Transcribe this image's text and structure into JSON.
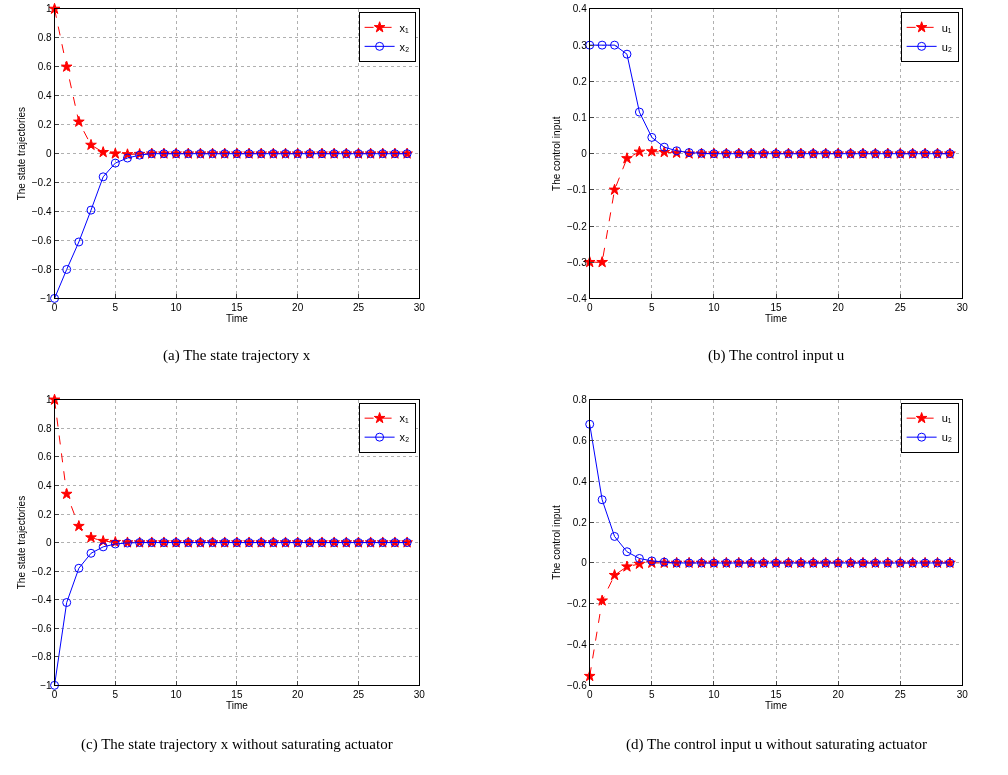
{
  "chart_data": [
    {
      "type": "line",
      "title": "(a) The state trajectory x",
      "xlabel": "Time",
      "ylabel": "The state trajectories",
      "x": [
        0,
        1,
        2,
        3,
        4,
        5,
        6,
        7,
        8,
        9,
        10,
        11,
        12,
        13,
        14,
        15,
        16,
        17,
        18,
        19,
        20,
        21,
        22,
        23,
        24,
        25,
        26,
        27,
        28,
        29
      ],
      "xlim": [
        0,
        30
      ],
      "xticks": [
        0,
        5,
        10,
        15,
        20,
        25,
        30
      ],
      "ylim": [
        -1,
        1
      ],
      "yticks": [
        -1,
        -0.8,
        -0.6,
        -0.4,
        -0.2,
        0,
        0.2,
        0.4,
        0.6,
        0.8,
        1
      ],
      "grid": true,
      "legend": "top right",
      "series": [
        {
          "name": "x₁",
          "color": "#ff0000",
          "marker": "star",
          "line_style": "dashed",
          "values": [
            1,
            0.6,
            0.22,
            0.06,
            0.01,
            0,
            -0.005,
            -0.003,
            0,
            0,
            0,
            0,
            0,
            0,
            0,
            0,
            0,
            0,
            0,
            0,
            0,
            0,
            0,
            0,
            0,
            0,
            0,
            0,
            0,
            0
          ]
        },
        {
          "name": "x₂",
          "color": "#0000ff",
          "marker": "circle",
          "line_style": "solid",
          "values": [
            -1,
            -0.8,
            -0.61,
            -0.39,
            -0.16,
            -0.065,
            -0.03,
            -0.01,
            0,
            0,
            0,
            0,
            0,
            0,
            0,
            0,
            0,
            0,
            0,
            0,
            0,
            0,
            0,
            0,
            0,
            0,
            0,
            0,
            0,
            0
          ]
        }
      ]
    },
    {
      "type": "line",
      "title": "(b) The control input u",
      "xlabel": "Time",
      "ylabel": "The control input",
      "x": [
        0,
        1,
        2,
        3,
        4,
        5,
        6,
        7,
        8,
        9,
        10,
        11,
        12,
        13,
        14,
        15,
        16,
        17,
        18,
        19,
        20,
        21,
        22,
        23,
        24,
        25,
        26,
        27,
        28,
        29
      ],
      "xlim": [
        0,
        30
      ],
      "xticks": [
        0,
        5,
        10,
        15,
        20,
        25,
        30
      ],
      "ylim": [
        -0.4,
        0.4
      ],
      "yticks": [
        -0.4,
        -0.3,
        -0.2,
        -0.1,
        0,
        0.1,
        0.2,
        0.3,
        0.4
      ],
      "grid": true,
      "legend": "top right",
      "series": [
        {
          "name": "u₁",
          "color": "#ff0000",
          "marker": "star",
          "line_style": "dashed",
          "values": [
            -0.3,
            -0.3,
            -0.1,
            -0.013,
            0.005,
            0.006,
            0.004,
            0.002,
            0,
            0,
            0,
            0,
            0,
            0,
            0,
            0,
            0,
            0,
            0,
            0,
            0,
            0,
            0,
            0,
            0,
            0,
            0,
            0,
            0,
            0
          ]
        },
        {
          "name": "u₂",
          "color": "#0000ff",
          "marker": "circle",
          "line_style": "solid",
          "values": [
            0.3,
            0.3,
            0.3,
            0.275,
            0.115,
            0.045,
            0.018,
            0.008,
            0.003,
            0.001,
            0,
            0,
            0,
            0,
            0,
            0,
            0,
            0,
            0,
            0,
            0,
            0,
            0,
            0,
            0,
            0,
            0,
            0,
            0,
            0
          ]
        }
      ]
    },
    {
      "type": "line",
      "title": "(c) The state trajectory x without saturating actuator",
      "xlabel": "Time",
      "ylabel": "The state trajectories",
      "x": [
        0,
        1,
        2,
        3,
        4,
        5,
        6,
        7,
        8,
        9,
        10,
        11,
        12,
        13,
        14,
        15,
        16,
        17,
        18,
        19,
        20,
        21,
        22,
        23,
        24,
        25,
        26,
        27,
        28,
        29
      ],
      "xlim": [
        0,
        30
      ],
      "xticks": [
        0,
        5,
        10,
        15,
        20,
        25,
        30
      ],
      "ylim": [
        -1,
        1
      ],
      "yticks": [
        -1,
        -0.8,
        -0.6,
        -0.4,
        -0.2,
        0,
        0.2,
        0.4,
        0.6,
        0.8,
        1
      ],
      "grid": true,
      "legend": "top right",
      "series": [
        {
          "name": "x₁",
          "color": "#ff0000",
          "marker": "star",
          "line_style": "dashed",
          "values": [
            1,
            0.34,
            0.115,
            0.035,
            0.01,
            0.003,
            0,
            0,
            0,
            0,
            0,
            0,
            0,
            0,
            0,
            0,
            0,
            0,
            0,
            0,
            0,
            0,
            0,
            0,
            0,
            0,
            0,
            0,
            0,
            0
          ]
        },
        {
          "name": "x₂",
          "color": "#0000ff",
          "marker": "circle",
          "line_style": "solid",
          "values": [
            -1,
            -0.42,
            -0.18,
            -0.075,
            -0.03,
            -0.01,
            -0.003,
            0,
            0,
            0,
            0,
            0,
            0,
            0,
            0,
            0,
            0,
            0,
            0,
            0,
            0,
            0,
            0,
            0,
            0,
            0,
            0,
            0,
            0,
            0
          ]
        }
      ]
    },
    {
      "type": "line",
      "title": "(d) The control input u without saturating actuator",
      "xlabel": "Time",
      "ylabel": "The control input",
      "x": [
        0,
        1,
        2,
        3,
        4,
        5,
        6,
        7,
        8,
        9,
        10,
        11,
        12,
        13,
        14,
        15,
        16,
        17,
        18,
        19,
        20,
        21,
        22,
        23,
        24,
        25,
        26,
        27,
        28,
        29
      ],
      "xlim": [
        0,
        30
      ],
      "xticks": [
        0,
        5,
        10,
        15,
        20,
        25,
        30
      ],
      "ylim": [
        -0.6,
        0.8
      ],
      "yticks": [
        -0.6,
        -0.4,
        -0.2,
        0,
        0.2,
        0.4,
        0.6,
        0.8
      ],
      "grid": true,
      "legend": "top right",
      "series": [
        {
          "name": "u₁",
          "color": "#ff0000",
          "marker": "star",
          "line_style": "dashed",
          "values": [
            -0.555,
            -0.185,
            -0.06,
            -0.018,
            -0.005,
            0,
            0,
            0,
            0,
            0,
            0,
            0,
            0,
            0,
            0,
            0,
            0,
            0,
            0,
            0,
            0,
            0,
            0,
            0,
            0,
            0,
            0,
            0,
            0,
            0
          ]
        },
        {
          "name": "u₂",
          "color": "#0000ff",
          "marker": "circle",
          "line_style": "solid",
          "values": [
            0.68,
            0.31,
            0.13,
            0.055,
            0.022,
            0.01,
            0.004,
            0,
            0,
            0,
            0,
            0,
            0,
            0,
            0,
            0,
            0,
            0,
            0,
            0,
            0,
            0,
            0,
            0,
            0,
            0,
            0,
            0,
            0,
            0
          ]
        }
      ]
    }
  ]
}
